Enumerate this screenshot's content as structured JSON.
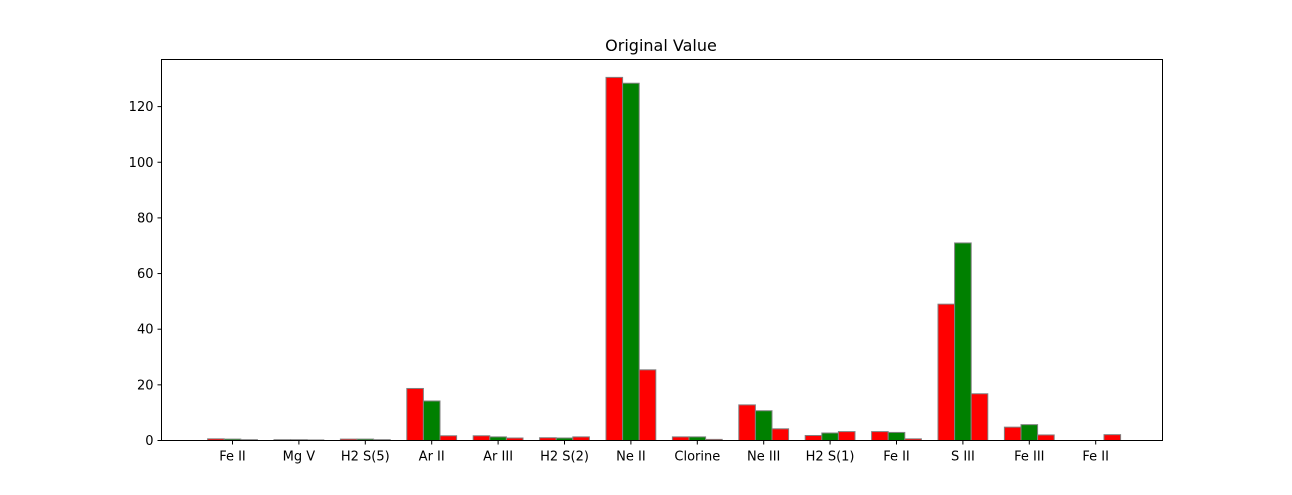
{
  "chart_data": {
    "type": "bar",
    "title": "Original Value",
    "xlabel": "",
    "ylabel": "",
    "categories": [
      "Fe II",
      "Mg V",
      "H2 S(5)",
      "Ar II",
      "Ar III",
      "H2 S(2)",
      "Ne II",
      "Clorine",
      "Ne III",
      "H2 S(1)",
      "Fe II",
      "S III",
      "Fe III",
      "Fe II"
    ],
    "series": [
      {
        "color": "#ff0000",
        "values": [
          0.6,
          0.3,
          0.5,
          18.7,
          1.7,
          1.0,
          130.5,
          1.3,
          12.8,
          1.8,
          3.2,
          49.0,
          4.8,
          0.0
        ]
      },
      {
        "color": "#008000",
        "values": [
          0.5,
          0.3,
          0.5,
          14.2,
          1.3,
          0.9,
          128.4,
          1.3,
          10.7,
          2.7,
          2.9,
          71.0,
          5.7,
          0.0
        ]
      },
      {
        "color": "#ff0000",
        "values": [
          0.3,
          0.2,
          0.3,
          1.7,
          0.9,
          1.3,
          25.4,
          0.4,
          4.2,
          3.2,
          0.6,
          16.8,
          2.0,
          2.1
        ]
      }
    ],
    "yticks": [
      0,
      20,
      40,
      60,
      80,
      100,
      120
    ],
    "ylim": [
      0,
      136.9
    ],
    "grid": false,
    "legend": "none",
    "bar_edge_color": "#808080"
  }
}
